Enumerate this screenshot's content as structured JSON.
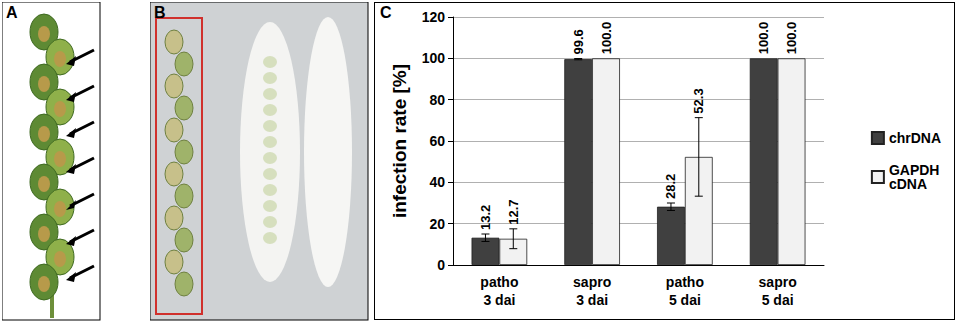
{
  "panel_labels": [
    "A",
    "B",
    "C"
  ],
  "chart_data": {
    "type": "bar",
    "y_label": "infection rate [%]",
    "categories": [
      "patho\n3 dai",
      "sapro\n3 dai",
      "patho\n5 dai",
      "sapro\n5 dai"
    ],
    "series": [
      {
        "name": "chrDNA",
        "color": "#404040",
        "values": [
          13.2,
          99.6,
          28.2,
          100.0
        ],
        "value_labels": [
          "13.2",
          "99.6",
          "28.2",
          "100.0"
        ],
        "errors": [
          1.8,
          0.3,
          1.8,
          0
        ]
      },
      {
        "name": "GAPDH cDNA",
        "color": "#f2f2f2",
        "values": [
          12.7,
          100.0,
          52.3,
          100.0
        ],
        "value_labels": [
          "12.7",
          "100.0",
          "52.3",
          "100.0"
        ],
        "errors": [
          4.8,
          0,
          19.0,
          0
        ]
      }
    ],
    "ylim": [
      0,
      120
    ],
    "yticks": [
      0,
      20,
      40,
      60,
      80,
      100,
      120
    ],
    "grid": true,
    "legend": "right",
    "data_labels": true
  }
}
